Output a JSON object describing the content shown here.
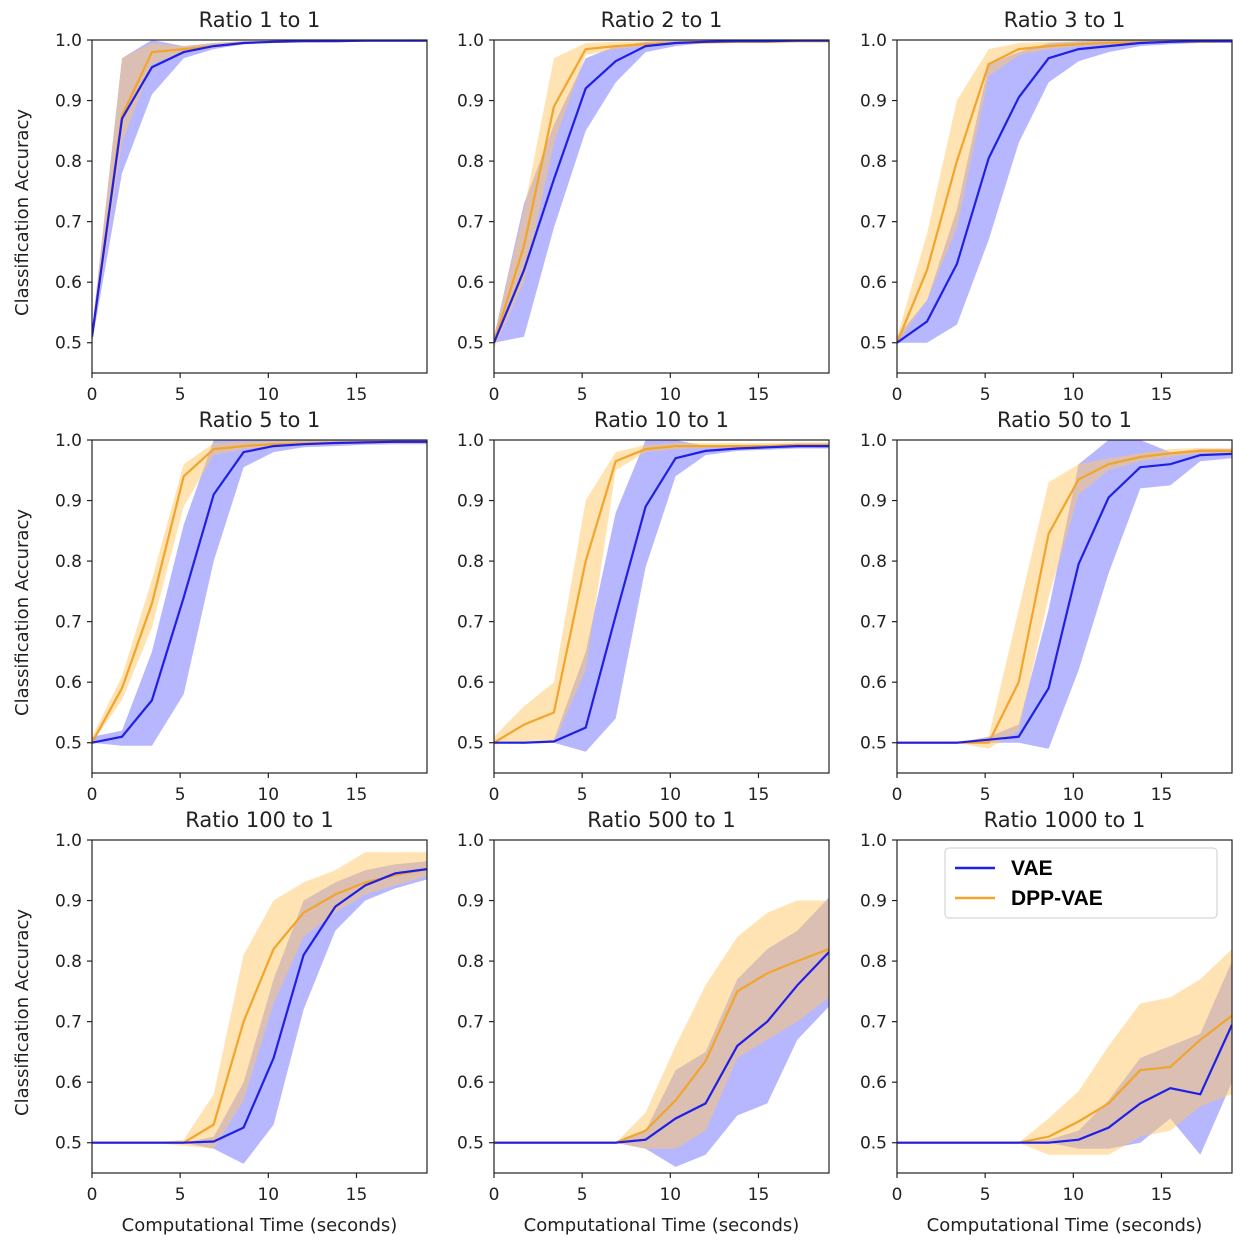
{
  "colors": {
    "vae": "#1f1fe6",
    "dpp": "#f2a42b",
    "vae_band": "#7b7bff",
    "dpp_band": "#ffc766"
  },
  "chart_data": [
    {
      "type": "line",
      "title": "Ratio 1 to 1",
      "xlabel": "",
      "ylabel": "Classification Accuracy",
      "xlim": [
        0,
        19
      ],
      "ylim": [
        0.45,
        1.0
      ],
      "xticks": [
        0,
        5,
        10,
        15
      ],
      "yticks": [
        0.5,
        0.6,
        0.7,
        0.8,
        0.9,
        1.0
      ],
      "x": [
        0,
        1.7,
        3.4,
        5.2,
        6.9,
        8.6,
        10.3,
        12,
        13.8,
        15.5,
        17.2,
        19
      ],
      "series": [
        {
          "name": "VAE",
          "values": [
            0.51,
            0.87,
            0.955,
            0.98,
            0.99,
            0.995,
            0.997,
            0.998,
            0.998,
            0.999,
            0.999,
            0.999
          ],
          "lower": [
            0.5,
            0.78,
            0.91,
            0.97,
            0.985,
            0.993,
            0.995,
            0.996,
            0.997,
            0.998,
            0.998,
            0.998
          ],
          "upper": [
            0.52,
            0.97,
            1.0,
            0.99,
            0.995,
            0.998,
            0.999,
            1.0,
            1.0,
            1.0,
            1.0,
            1.0
          ]
        },
        {
          "name": "DPP-VAE",
          "values": [
            0.51,
            0.875,
            0.98,
            0.985,
            0.99,
            0.995,
            0.997,
            0.998,
            0.998,
            0.999,
            0.999,
            0.999
          ],
          "lower": [
            0.5,
            0.83,
            0.96,
            0.98,
            0.987,
            0.993,
            0.995,
            0.996,
            0.997,
            0.998,
            0.998,
            0.998
          ],
          "upper": [
            0.52,
            0.97,
            0.995,
            0.99,
            0.995,
            0.998,
            0.999,
            1.0,
            1.0,
            1.0,
            1.0,
            1.0
          ]
        }
      ]
    },
    {
      "type": "line",
      "title": "Ratio 2 to 1",
      "xlabel": "",
      "ylabel": "",
      "xlim": [
        0,
        19
      ],
      "ylim": [
        0.45,
        1.0
      ],
      "xticks": [
        0,
        5,
        10,
        15
      ],
      "yticks": [
        0.5,
        0.6,
        0.7,
        0.8,
        0.9,
        1.0
      ],
      "x": [
        0,
        1.7,
        3.4,
        5.2,
        6.9,
        8.6,
        10.3,
        12,
        13.8,
        15.5,
        17.2,
        19
      ],
      "series": [
        {
          "name": "VAE",
          "values": [
            0.5,
            0.62,
            0.77,
            0.92,
            0.965,
            0.99,
            0.995,
            0.997,
            0.998,
            0.998,
            0.999,
            0.999
          ],
          "lower": [
            0.5,
            0.51,
            0.69,
            0.85,
            0.93,
            0.98,
            0.99,
            0.995,
            0.996,
            0.997,
            0.998,
            0.998
          ],
          "upper": [
            0.51,
            0.73,
            0.86,
            0.97,
            0.99,
            0.997,
            0.999,
            1.0,
            1.0,
            1.0,
            1.0,
            1.0
          ]
        },
        {
          "name": "DPP-VAE",
          "values": [
            0.5,
            0.66,
            0.89,
            0.985,
            0.99,
            0.993,
            0.995,
            0.996,
            0.997,
            0.997,
            0.998,
            0.998
          ],
          "lower": [
            0.49,
            0.6,
            0.83,
            0.975,
            0.985,
            0.99,
            0.993,
            0.994,
            0.995,
            0.995,
            0.996,
            0.996
          ],
          "upper": [
            0.51,
            0.72,
            0.97,
            0.995,
            0.997,
            0.998,
            0.999,
            1.0,
            1.0,
            1.0,
            1.0,
            1.0
          ]
        }
      ]
    },
    {
      "type": "line",
      "title": "Ratio 3 to 1",
      "xlabel": "",
      "ylabel": "",
      "xlim": [
        0,
        19
      ],
      "ylim": [
        0.45,
        1.0
      ],
      "xticks": [
        0,
        5,
        10,
        15
      ],
      "yticks": [
        0.5,
        0.6,
        0.7,
        0.8,
        0.9,
        1.0
      ],
      "x": [
        0,
        1.7,
        3.4,
        5.2,
        6.9,
        8.6,
        10.3,
        12,
        13.8,
        15.5,
        17.2,
        19
      ],
      "series": [
        {
          "name": "VAE",
          "values": [
            0.5,
            0.535,
            0.63,
            0.805,
            0.905,
            0.97,
            0.985,
            0.99,
            0.995,
            0.997,
            0.998,
            0.998
          ],
          "lower": [
            0.5,
            0.5,
            0.53,
            0.67,
            0.83,
            0.93,
            0.965,
            0.98,
            0.99,
            0.993,
            0.995,
            0.995
          ],
          "upper": [
            0.51,
            0.57,
            0.72,
            0.96,
            0.98,
            0.995,
            0.998,
            1.0,
            1.0,
            1.0,
            1.0,
            1.0
          ]
        },
        {
          "name": "DPP-VAE",
          "values": [
            0.5,
            0.62,
            0.8,
            0.96,
            0.985,
            0.99,
            0.993,
            0.995,
            0.996,
            0.997,
            0.997,
            0.998
          ],
          "lower": [
            0.5,
            0.57,
            0.69,
            0.94,
            0.975,
            0.985,
            0.99,
            0.993,
            0.994,
            0.995,
            0.995,
            0.996
          ],
          "upper": [
            0.51,
            0.68,
            0.9,
            0.985,
            0.995,
            0.997,
            0.998,
            1.0,
            1.0,
            1.0,
            1.0,
            1.0
          ]
        }
      ]
    },
    {
      "type": "line",
      "title": "Ratio 5 to 1",
      "xlabel": "",
      "ylabel": "Classification Accuracy",
      "xlim": [
        0,
        19
      ],
      "ylim": [
        0.45,
        1.0
      ],
      "xticks": [
        0,
        5,
        10,
        15
      ],
      "yticks": [
        0.5,
        0.6,
        0.7,
        0.8,
        0.9,
        1.0
      ],
      "x": [
        0,
        1.7,
        3.4,
        5.2,
        6.9,
        8.6,
        10.3,
        12,
        13.8,
        15.5,
        17.2,
        19
      ],
      "series": [
        {
          "name": "VAE",
          "values": [
            0.5,
            0.51,
            0.57,
            0.74,
            0.91,
            0.98,
            0.99,
            0.993,
            0.995,
            0.996,
            0.997,
            0.997
          ],
          "lower": [
            0.5,
            0.495,
            0.495,
            0.58,
            0.8,
            0.955,
            0.98,
            0.988,
            0.99,
            0.992,
            0.993,
            0.993
          ],
          "upper": [
            0.51,
            0.52,
            0.65,
            0.86,
            1.0,
            1.0,
            1.0,
            1.0,
            1.0,
            1.0,
            1.0,
            1.0
          ]
        },
        {
          "name": "DPP-VAE",
          "values": [
            0.5,
            0.59,
            0.73,
            0.94,
            0.985,
            0.99,
            0.993,
            0.994,
            0.995,
            0.996,
            0.997,
            0.997
          ],
          "lower": [
            0.5,
            0.57,
            0.69,
            0.89,
            0.975,
            0.985,
            0.99,
            0.991,
            0.992,
            0.993,
            0.994,
            0.994
          ],
          "upper": [
            0.51,
            0.61,
            0.77,
            0.96,
            0.995,
            0.997,
            0.998,
            1.0,
            1.0,
            1.0,
            1.0,
            1.0
          ]
        }
      ]
    },
    {
      "type": "line",
      "title": "Ratio 10 to 1",
      "xlabel": "",
      "ylabel": "",
      "xlim": [
        0,
        19
      ],
      "ylim": [
        0.45,
        1.0
      ],
      "xticks": [
        0,
        5,
        10,
        15
      ],
      "yticks": [
        0.5,
        0.6,
        0.7,
        0.8,
        0.9,
        1.0
      ],
      "x": [
        0,
        1.7,
        3.4,
        5.2,
        6.9,
        8.6,
        10.3,
        12,
        13.8,
        15.5,
        17.2,
        19
      ],
      "series": [
        {
          "name": "VAE",
          "values": [
            0.5,
            0.5,
            0.502,
            0.525,
            0.71,
            0.89,
            0.97,
            0.982,
            0.986,
            0.988,
            0.99,
            0.99
          ],
          "lower": [
            0.5,
            0.498,
            0.5,
            0.485,
            0.54,
            0.79,
            0.94,
            0.975,
            0.982,
            0.984,
            0.986,
            0.986
          ],
          "upper": [
            0.5,
            0.5,
            0.505,
            0.65,
            0.88,
            1.0,
            1.0,
            0.99,
            0.99,
            0.992,
            0.994,
            0.994
          ]
        },
        {
          "name": "DPP-VAE",
          "values": [
            0.5,
            0.53,
            0.55,
            0.8,
            0.965,
            0.985,
            0.99,
            0.99,
            0.99,
            0.99,
            0.992,
            0.992
          ],
          "lower": [
            0.5,
            0.5,
            0.5,
            0.62,
            0.95,
            0.98,
            0.985,
            0.987,
            0.988,
            0.988,
            0.99,
            0.99
          ],
          "upper": [
            0.51,
            0.56,
            0.6,
            0.9,
            0.98,
            0.992,
            0.995,
            0.995,
            0.995,
            0.995,
            0.996,
            0.996
          ]
        }
      ]
    },
    {
      "type": "line",
      "title": "Ratio 50 to 1",
      "xlabel": "",
      "ylabel": "",
      "xlim": [
        0,
        19
      ],
      "ylim": [
        0.45,
        1.0
      ],
      "xticks": [
        0,
        5,
        10,
        15
      ],
      "yticks": [
        0.5,
        0.6,
        0.7,
        0.8,
        0.9,
        1.0
      ],
      "x": [
        0,
        1.7,
        3.4,
        5.2,
        6.9,
        8.6,
        10.3,
        12,
        13.8,
        15.5,
        17.2,
        19
      ],
      "series": [
        {
          "name": "VAE",
          "values": [
            0.5,
            0.5,
            0.5,
            0.505,
            0.51,
            0.59,
            0.795,
            0.905,
            0.955,
            0.96,
            0.975,
            0.977
          ],
          "lower": [
            0.5,
            0.5,
            0.5,
            0.5,
            0.5,
            0.49,
            0.62,
            0.78,
            0.92,
            0.925,
            0.965,
            0.97
          ],
          "upper": [
            0.5,
            0.5,
            0.5,
            0.51,
            0.53,
            0.72,
            0.96,
            1.0,
            1.0,
            0.98,
            0.985,
            0.985
          ]
        },
        {
          "name": "DPP-VAE",
          "values": [
            0.5,
            0.5,
            0.5,
            0.5,
            0.6,
            0.845,
            0.935,
            0.96,
            0.972,
            0.978,
            0.982,
            0.982
          ],
          "lower": [
            0.5,
            0.5,
            0.5,
            0.49,
            0.52,
            0.74,
            0.91,
            0.95,
            0.965,
            0.972,
            0.978,
            0.978
          ],
          "upper": [
            0.5,
            0.5,
            0.5,
            0.51,
            0.72,
            0.93,
            0.96,
            0.97,
            0.978,
            0.985,
            0.987,
            0.987
          ]
        }
      ]
    },
    {
      "type": "line",
      "title": "Ratio 100 to 1",
      "xlabel": "Computational Time (seconds)",
      "ylabel": "Classification Accuracy",
      "xlim": [
        0,
        19
      ],
      "ylim": [
        0.45,
        1.0
      ],
      "xticks": [
        0,
        5,
        10,
        15
      ],
      "yticks": [
        0.5,
        0.6,
        0.7,
        0.8,
        0.9,
        1.0
      ],
      "x": [
        0,
        1.7,
        3.4,
        5.2,
        6.9,
        8.6,
        10.3,
        12,
        13.8,
        15.5,
        17.2,
        19
      ],
      "series": [
        {
          "name": "VAE",
          "values": [
            0.5,
            0.5,
            0.5,
            0.5,
            0.502,
            0.525,
            0.64,
            0.81,
            0.89,
            0.925,
            0.945,
            0.952
          ],
          "lower": [
            0.5,
            0.5,
            0.5,
            0.5,
            0.49,
            0.465,
            0.53,
            0.72,
            0.85,
            0.9,
            0.92,
            0.935
          ],
          "upper": [
            0.5,
            0.5,
            0.5,
            0.5,
            0.51,
            0.6,
            0.77,
            0.9,
            0.93,
            0.95,
            0.96,
            0.965
          ]
        },
        {
          "name": "DPP-VAE",
          "values": [
            0.5,
            0.5,
            0.5,
            0.5,
            0.53,
            0.7,
            0.82,
            0.88,
            0.91,
            0.93,
            0.942,
            0.952
          ],
          "lower": [
            0.5,
            0.5,
            0.5,
            0.495,
            0.49,
            0.57,
            0.73,
            0.84,
            0.88,
            0.91,
            0.925,
            0.94
          ],
          "upper": [
            0.5,
            0.5,
            0.5,
            0.505,
            0.58,
            0.81,
            0.9,
            0.93,
            0.95,
            0.98,
            0.98,
            0.98
          ]
        }
      ]
    },
    {
      "type": "line",
      "title": "Ratio 500 to 1",
      "xlabel": "Computational Time (seconds)",
      "ylabel": "",
      "xlim": [
        0,
        19
      ],
      "ylim": [
        0.45,
        1.0
      ],
      "xticks": [
        0,
        5,
        10,
        15
      ],
      "yticks": [
        0.5,
        0.6,
        0.7,
        0.8,
        0.9,
        1.0
      ],
      "x": [
        0,
        1.7,
        3.4,
        5.2,
        6.9,
        8.6,
        10.3,
        12,
        13.8,
        15.5,
        17.2,
        19
      ],
      "series": [
        {
          "name": "VAE",
          "values": [
            0.5,
            0.5,
            0.5,
            0.5,
            0.5,
            0.505,
            0.54,
            0.565,
            0.66,
            0.7,
            0.76,
            0.815
          ],
          "lower": [
            0.5,
            0.5,
            0.5,
            0.5,
            0.5,
            0.49,
            0.46,
            0.48,
            0.545,
            0.565,
            0.67,
            0.725
          ],
          "upper": [
            0.5,
            0.5,
            0.5,
            0.5,
            0.5,
            0.52,
            0.62,
            0.65,
            0.77,
            0.82,
            0.85,
            0.905
          ]
        },
        {
          "name": "DPP-VAE",
          "values": [
            0.5,
            0.5,
            0.5,
            0.5,
            0.5,
            0.52,
            0.57,
            0.635,
            0.75,
            0.78,
            0.8,
            0.82
          ],
          "lower": [
            0.5,
            0.5,
            0.5,
            0.5,
            0.5,
            0.49,
            0.49,
            0.52,
            0.64,
            0.67,
            0.7,
            0.74
          ],
          "upper": [
            0.5,
            0.5,
            0.5,
            0.5,
            0.5,
            0.55,
            0.66,
            0.76,
            0.84,
            0.88,
            0.9,
            0.9
          ]
        }
      ]
    },
    {
      "type": "line",
      "title": "Ratio 1000 to 1",
      "xlabel": "Computational Time (seconds)",
      "ylabel": "",
      "xlim": [
        0,
        19
      ],
      "ylim": [
        0.45,
        1.0
      ],
      "xticks": [
        0,
        5,
        10,
        15
      ],
      "yticks": [
        0.5,
        0.6,
        0.7,
        0.8,
        0.9,
        1.0
      ],
      "legend": "top-right",
      "x": [
        0,
        1.7,
        3.4,
        5.2,
        6.9,
        8.6,
        10.3,
        12,
        13.8,
        15.5,
        17.2,
        19
      ],
      "series": [
        {
          "name": "VAE",
          "values": [
            0.5,
            0.5,
            0.5,
            0.5,
            0.5,
            0.5,
            0.505,
            0.525,
            0.565,
            0.59,
            0.58,
            0.695
          ],
          "lower": [
            0.5,
            0.5,
            0.5,
            0.5,
            0.5,
            0.5,
            0.49,
            0.49,
            0.5,
            0.54,
            0.48,
            0.6
          ],
          "upper": [
            0.5,
            0.5,
            0.5,
            0.5,
            0.5,
            0.505,
            0.52,
            0.57,
            0.64,
            0.66,
            0.68,
            0.8
          ]
        },
        {
          "name": "DPP-VAE",
          "values": [
            0.5,
            0.5,
            0.5,
            0.5,
            0.5,
            0.51,
            0.535,
            0.565,
            0.62,
            0.625,
            0.67,
            0.71
          ],
          "lower": [
            0.5,
            0.5,
            0.5,
            0.5,
            0.5,
            0.48,
            0.48,
            0.48,
            0.51,
            0.52,
            0.56,
            0.58
          ],
          "upper": [
            0.5,
            0.5,
            0.5,
            0.5,
            0.5,
            0.54,
            0.585,
            0.66,
            0.73,
            0.74,
            0.77,
            0.82
          ]
        }
      ]
    }
  ]
}
